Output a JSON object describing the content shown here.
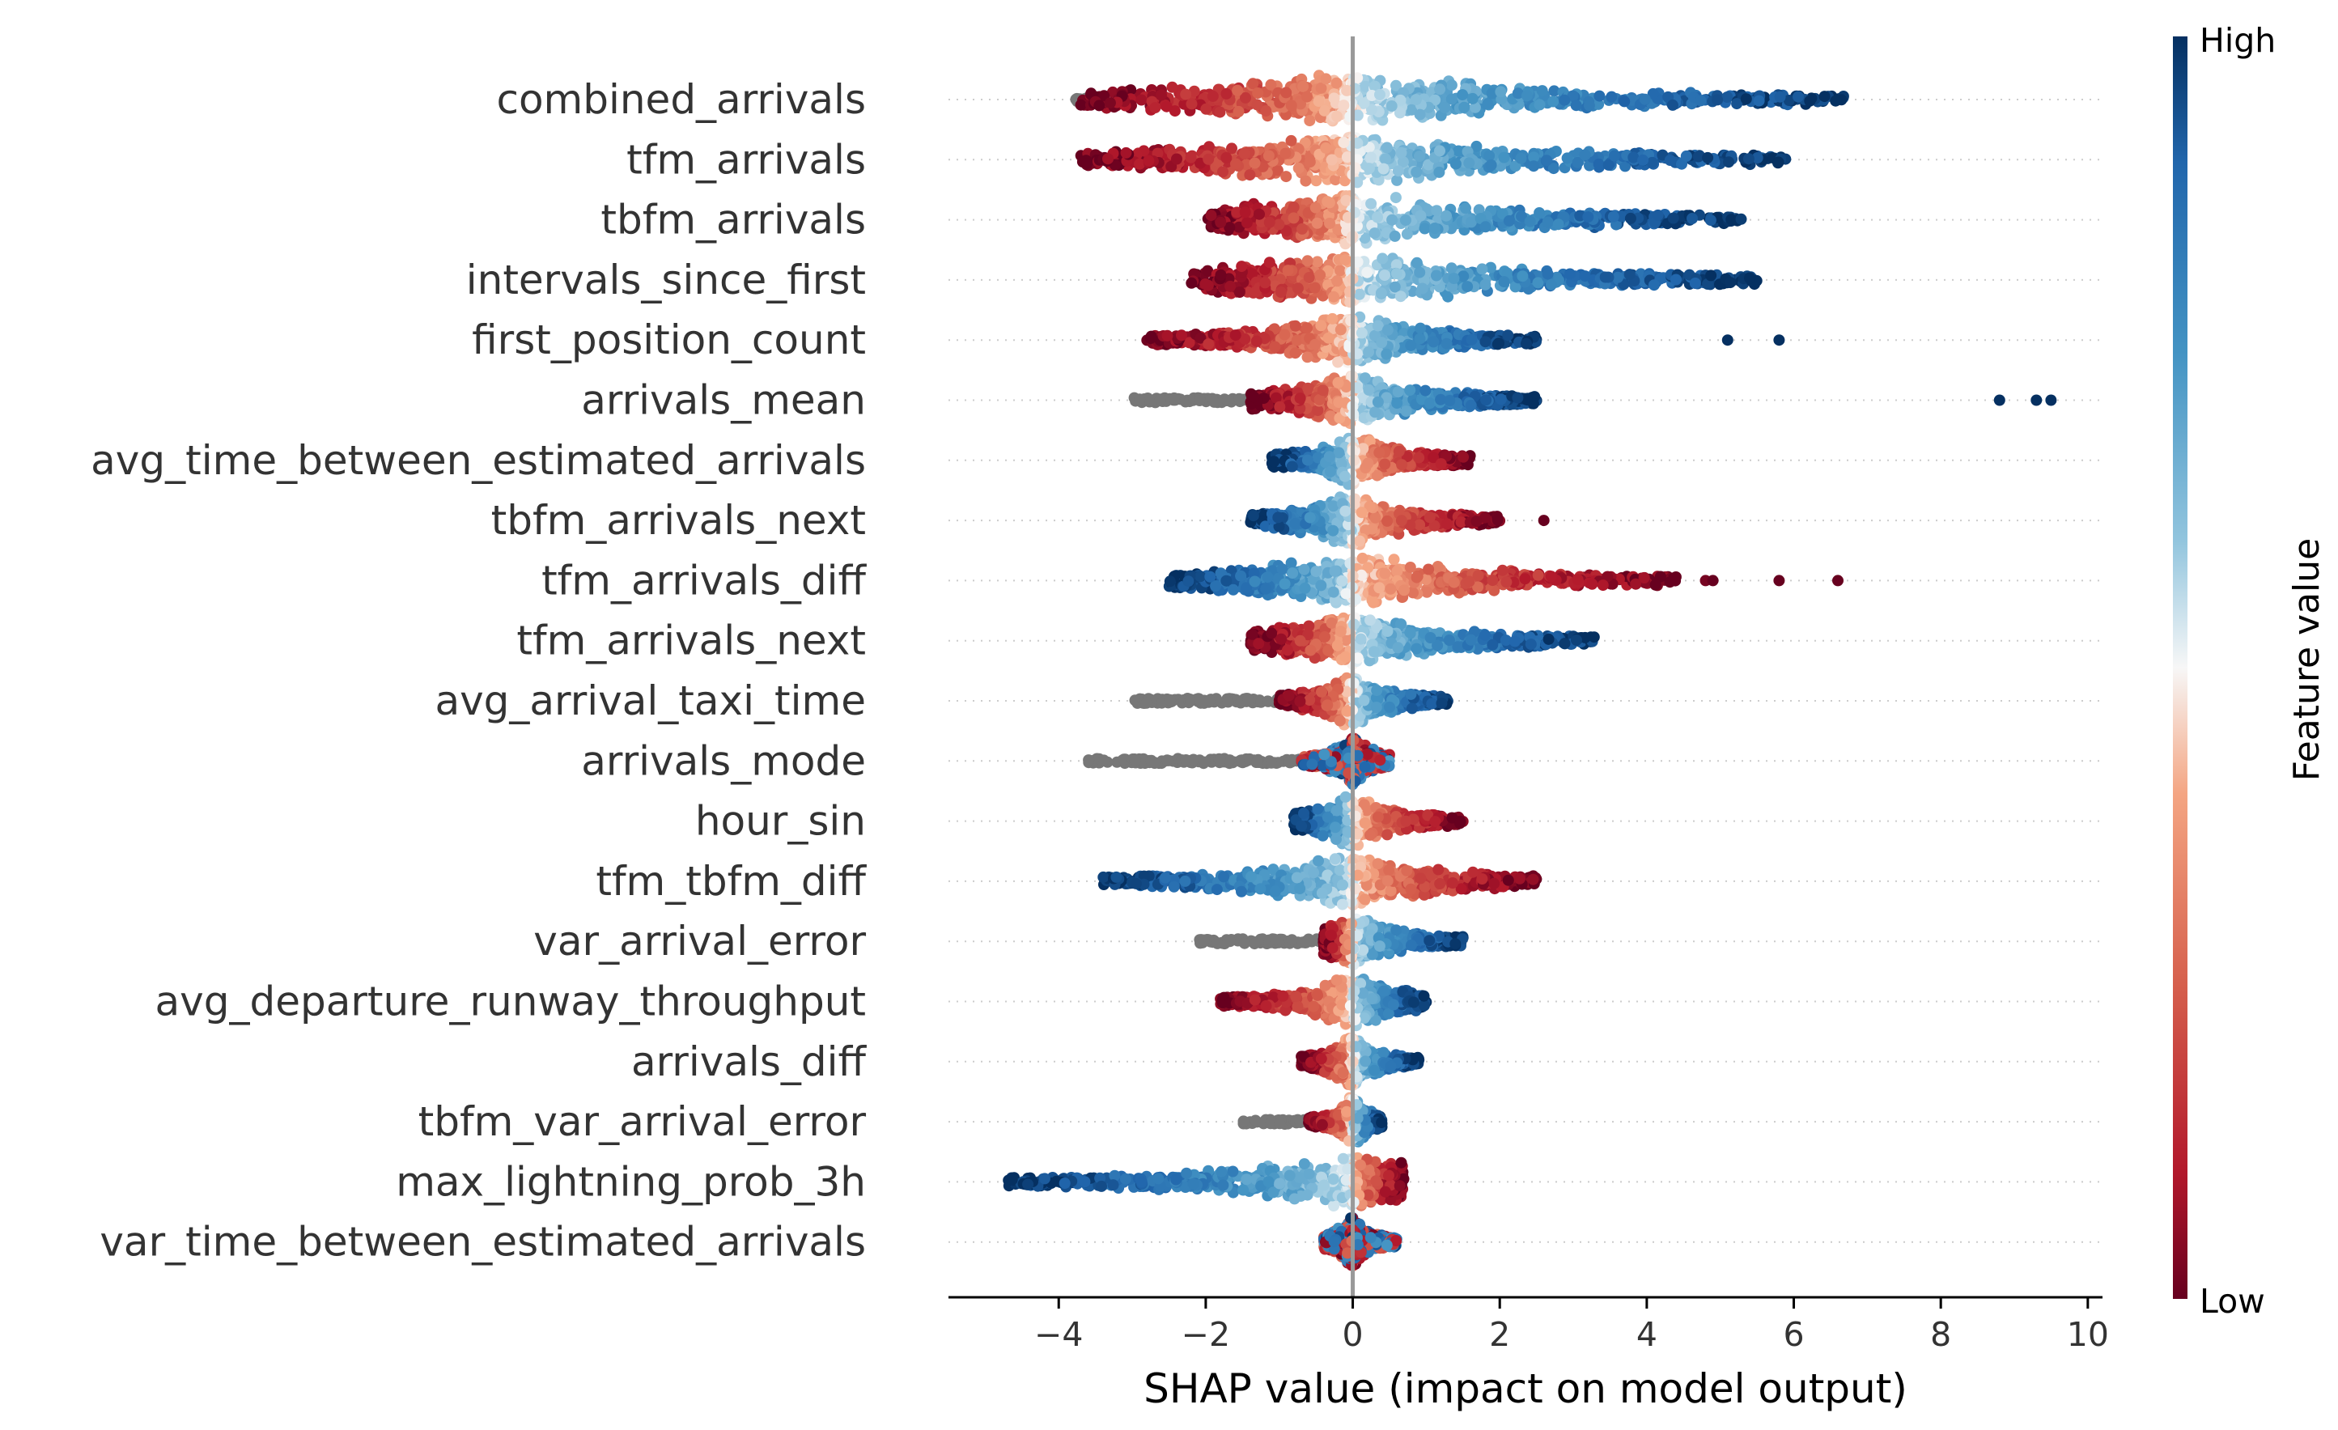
{
  "chart_data": {
    "type": "scatter",
    "subtype": "shap-beeswarm-summary",
    "xlabel": "SHAP value (impact on model output)",
    "ylabel": "",
    "xlim": [
      -5.5,
      10.2
    ],
    "x_ticks": [
      -4,
      -2,
      0,
      2,
      4,
      6,
      8,
      10
    ],
    "x_tick_labels": [
      "−4",
      "−2",
      "0",
      "2",
      "4",
      "6",
      "8",
      "10"
    ],
    "zero_line": 0,
    "colorbar": {
      "label": "Feature value",
      "high_label": "High",
      "low_label": "Low",
      "colormap": "RdBu (low = red, high = blue)",
      "high_color": "#08306b",
      "mid_color": "#f7f7f7",
      "low_color": "#67001f",
      "missing_color": "#777777"
    },
    "features": [
      {
        "name": "combined_arrivals",
        "shap_min": -3.7,
        "shap_max": 6.7,
        "low_side": "negative",
        "high_side": "positive",
        "outliers": [],
        "missing_range": [
          -3.8,
          -3.5
        ]
      },
      {
        "name": "tfm_arrivals",
        "shap_min": -3.7,
        "shap_max": 5.9,
        "low_side": "negative",
        "high_side": "positive",
        "outliers": [],
        "missing_range": null
      },
      {
        "name": "tbfm_arrivals",
        "shap_min": -2.0,
        "shap_max": 5.3,
        "low_side": "negative",
        "high_side": "positive",
        "outliers": [],
        "missing_range": null
      },
      {
        "name": "intervals_since_first",
        "shap_min": -2.2,
        "shap_max": 5.5,
        "low_side": "negative",
        "high_side": "positive",
        "outliers": [],
        "missing_range": null
      },
      {
        "name": "first_position_count",
        "shap_min": -2.8,
        "shap_max": 2.5,
        "low_side": "negative",
        "high_side": "positive",
        "outliers": [
          5.1,
          5.8
        ],
        "missing_range": null
      },
      {
        "name": "arrivals_mean",
        "shap_min": -1.4,
        "shap_max": 2.5,
        "low_side": "negative",
        "high_side": "positive",
        "outliers": [
          8.8,
          9.3,
          9.5
        ],
        "missing_range": [
          -3.0,
          -1.4
        ]
      },
      {
        "name": "avg_time_between_estimated_arrivals",
        "shap_min": -1.1,
        "shap_max": 1.6,
        "low_side": "positive",
        "high_side": "negative",
        "outliers": [],
        "missing_range": null
      },
      {
        "name": "tbfm_arrivals_next",
        "shap_min": -1.4,
        "shap_max": 2.0,
        "low_side": "positive",
        "high_side": "negative",
        "outliers": [
          2.6
        ],
        "missing_range": null
      },
      {
        "name": "tfm_arrivals_diff",
        "shap_min": -2.5,
        "shap_max": 4.4,
        "low_side": "positive",
        "high_side": "negative",
        "outliers": [
          4.8,
          4.9,
          5.8,
          6.6
        ],
        "missing_range": null
      },
      {
        "name": "tfm_arrivals_next",
        "shap_min": -1.4,
        "shap_max": 3.3,
        "low_side": "negative",
        "high_side": "positive",
        "outliers": [],
        "missing_range": null
      },
      {
        "name": "avg_arrival_taxi_time",
        "shap_min": -1.0,
        "shap_max": 1.3,
        "low_side": "negative",
        "high_side": "positive",
        "outliers": [],
        "missing_range": [
          -3.0,
          -1.0
        ]
      },
      {
        "name": "arrivals_mode",
        "shap_min": -0.7,
        "shap_max": 0.5,
        "low_side": "mixed",
        "high_side": "mixed",
        "outliers": [],
        "missing_range": [
          -3.6,
          -0.7
        ]
      },
      {
        "name": "hour_sin",
        "shap_min": -0.8,
        "shap_max": 1.5,
        "low_side": "positive",
        "high_side": "negative",
        "outliers": [],
        "missing_range": null
      },
      {
        "name": "tfm_tbfm_diff",
        "shap_min": -3.4,
        "shap_max": 2.5,
        "low_side": "positive",
        "high_side": "negative",
        "outliers": [],
        "missing_range": null
      },
      {
        "name": "var_arrival_error",
        "shap_min": -0.4,
        "shap_max": 1.5,
        "low_side": "negative",
        "high_side": "positive",
        "outliers": [],
        "missing_range": [
          -2.1,
          -0.4
        ]
      },
      {
        "name": "avg_departure_runway_throughput",
        "shap_min": -1.8,
        "shap_max": 1.0,
        "low_side": "negative",
        "high_side": "positive",
        "outliers": [],
        "missing_range": null
      },
      {
        "name": "arrivals_diff",
        "shap_min": -0.7,
        "shap_max": 0.9,
        "low_side": "negative",
        "high_side": "positive",
        "outliers": [],
        "missing_range": null
      },
      {
        "name": "tbfm_var_arrival_error",
        "shap_min": -0.6,
        "shap_max": 0.4,
        "low_side": "negative",
        "high_side": "positive",
        "outliers": [],
        "missing_range": [
          -1.5,
          -0.6
        ]
      },
      {
        "name": "max_lightning_prob_3h",
        "shap_min": -4.7,
        "shap_max": 0.7,
        "low_side": "positive",
        "high_side": "negative",
        "outliers": [],
        "missing_range": null
      },
      {
        "name": "var_time_between_estimated_arrivals",
        "shap_min": -0.4,
        "shap_max": 0.6,
        "low_side": "mixed",
        "high_side": "mixed",
        "outliers": [],
        "missing_range": null
      }
    ]
  }
}
